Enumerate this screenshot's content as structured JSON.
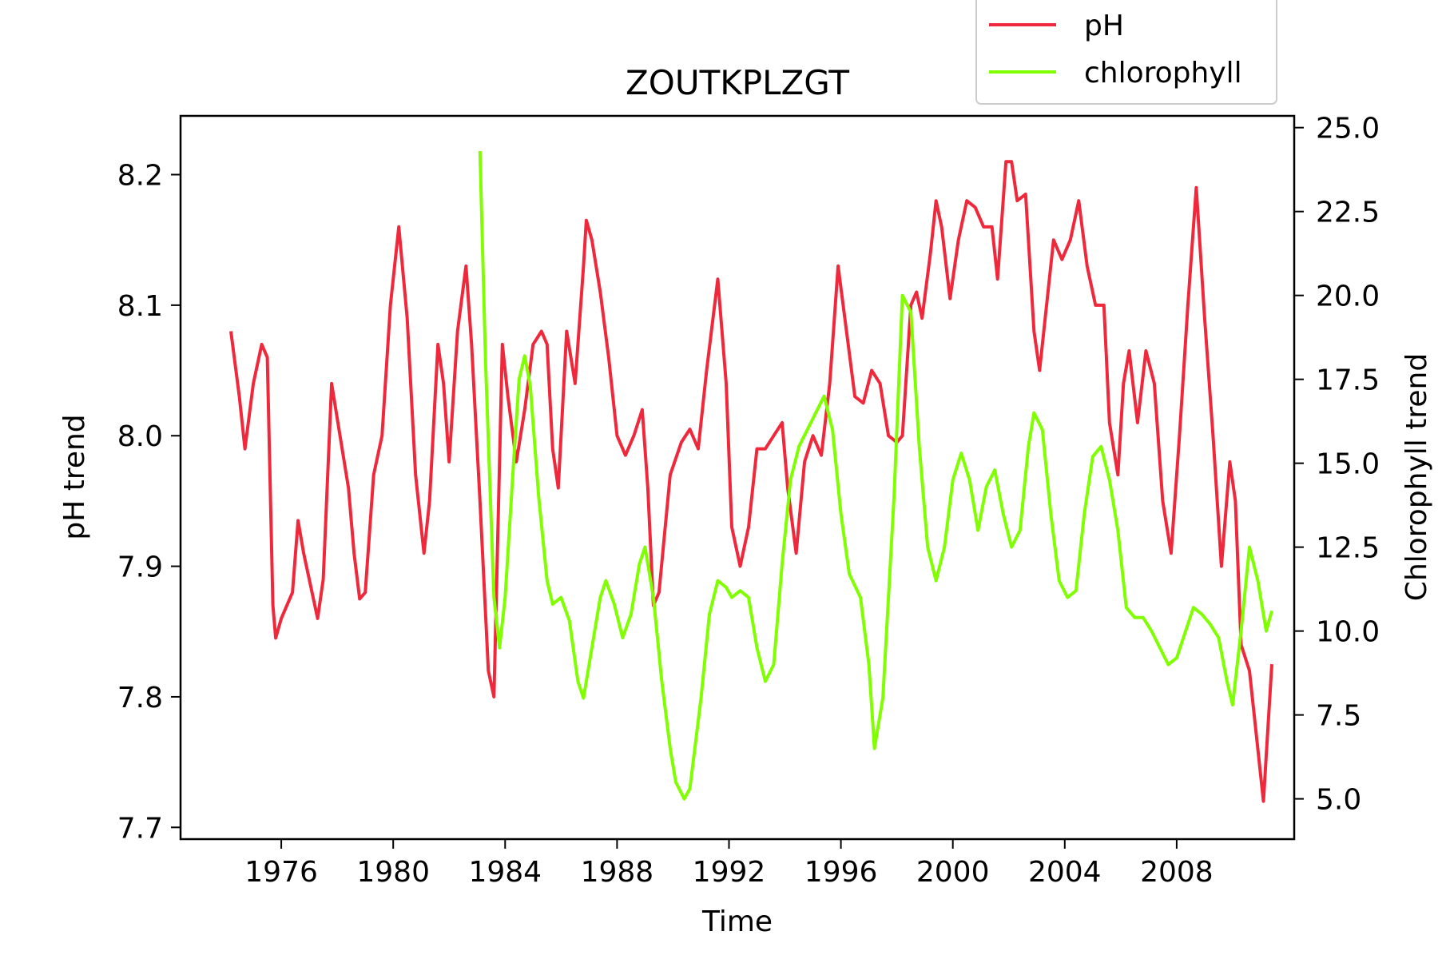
{
  "chart_data": {
    "type": "line",
    "title": "ZOUTKPLZGT",
    "xlabel": "Time",
    "ylabel": "pH trend",
    "y2label": "Chlorophyll trend",
    "xlim": [
      1972.4,
      2012.2
    ],
    "ylim": [
      7.691,
      8.245
    ],
    "y2lim": [
      3.8,
      25.35
    ],
    "x_ticks": [
      "1976",
      "1980",
      "1984",
      "1988",
      "1992",
      "1996",
      "2000",
      "2004",
      "2008"
    ],
    "y_ticks": [
      "7.7",
      "7.8",
      "7.9",
      "8.0",
      "8.1",
      "8.2"
    ],
    "y2_ticks": [
      "5.0",
      "7.5",
      "10.0",
      "12.5",
      "15.0",
      "17.5",
      "20.0",
      "22.5",
      "25.0"
    ],
    "grid": false,
    "legend_position": "top-right (above plot)",
    "series": [
      {
        "name": "pH",
        "axis": "left",
        "color": "#f0283c",
        "points": [
          [
            1974.2,
            8.08
          ],
          [
            1974.5,
            8.03
          ],
          [
            1974.7,
            7.99
          ],
          [
            1975.0,
            8.04
          ],
          [
            1975.3,
            8.07
          ],
          [
            1975.5,
            8.06
          ],
          [
            1975.7,
            7.87
          ],
          [
            1975.8,
            7.845
          ],
          [
            1976.0,
            7.86
          ],
          [
            1976.2,
            7.87
          ],
          [
            1976.4,
            7.88
          ],
          [
            1976.6,
            7.935
          ],
          [
            1976.8,
            7.91
          ],
          [
            1977.1,
            7.88
          ],
          [
            1977.3,
            7.86
          ],
          [
            1977.5,
            7.89
          ],
          [
            1977.8,
            8.04
          ],
          [
            1978.1,
            8.0
          ],
          [
            1978.4,
            7.96
          ],
          [
            1978.6,
            7.91
          ],
          [
            1978.8,
            7.875
          ],
          [
            1979.0,
            7.88
          ],
          [
            1979.3,
            7.97
          ],
          [
            1979.6,
            8.0
          ],
          [
            1979.9,
            8.1
          ],
          [
            1980.2,
            8.16
          ],
          [
            1980.5,
            8.09
          ],
          [
            1980.8,
            7.97
          ],
          [
            1981.1,
            7.91
          ],
          [
            1981.3,
            7.95
          ],
          [
            1981.6,
            8.07
          ],
          [
            1981.8,
            8.04
          ],
          [
            1982.0,
            7.98
          ],
          [
            1982.3,
            8.08
          ],
          [
            1982.6,
            8.13
          ],
          [
            1982.8,
            8.07
          ],
          [
            1983.1,
            7.95
          ],
          [
            1983.4,
            7.82
          ],
          [
            1983.6,
            7.8
          ],
          [
            1983.9,
            8.07
          ],
          [
            1984.1,
            8.03
          ],
          [
            1984.4,
            7.98
          ],
          [
            1984.7,
            8.02
          ],
          [
            1985.0,
            8.07
          ],
          [
            1985.3,
            8.08
          ],
          [
            1985.5,
            8.07
          ],
          [
            1985.7,
            7.99
          ],
          [
            1985.9,
            7.96
          ],
          [
            1986.2,
            8.08
          ],
          [
            1986.5,
            8.04
          ],
          [
            1986.8,
            8.13
          ],
          [
            1986.9,
            8.165
          ],
          [
            1987.1,
            8.15
          ],
          [
            1987.4,
            8.11
          ],
          [
            1987.7,
            8.06
          ],
          [
            1988.0,
            8.0
          ],
          [
            1988.3,
            7.985
          ],
          [
            1988.6,
            8.0
          ],
          [
            1988.9,
            8.02
          ],
          [
            1989.1,
            7.96
          ],
          [
            1989.3,
            7.87
          ],
          [
            1989.5,
            7.88
          ],
          [
            1989.9,
            7.97
          ],
          [
            1990.3,
            7.995
          ],
          [
            1990.6,
            8.005
          ],
          [
            1990.9,
            7.99
          ],
          [
            1991.2,
            8.05
          ],
          [
            1991.6,
            8.12
          ],
          [
            1991.9,
            8.04
          ],
          [
            1992.1,
            7.93
          ],
          [
            1992.4,
            7.9
          ],
          [
            1992.7,
            7.93
          ],
          [
            1993.0,
            7.99
          ],
          [
            1993.3,
            7.99
          ],
          [
            1993.6,
            8.0
          ],
          [
            1993.9,
            8.01
          ],
          [
            1994.1,
            7.96
          ],
          [
            1994.4,
            7.91
          ],
          [
            1994.7,
            7.98
          ],
          [
            1995.0,
            8.0
          ],
          [
            1995.3,
            7.985
          ],
          [
            1995.6,
            8.04
          ],
          [
            1995.9,
            8.13
          ],
          [
            1996.2,
            8.08
          ],
          [
            1996.5,
            8.03
          ],
          [
            1996.8,
            8.025
          ],
          [
            1997.1,
            8.05
          ],
          [
            1997.4,
            8.04
          ],
          [
            1997.7,
            8.0
          ],
          [
            1998.0,
            7.995
          ],
          [
            1998.2,
            8.0
          ],
          [
            1998.5,
            8.1
          ],
          [
            1998.7,
            8.11
          ],
          [
            1998.9,
            8.09
          ],
          [
            1999.2,
            8.14
          ],
          [
            1999.4,
            8.18
          ],
          [
            1999.6,
            8.16
          ],
          [
            1999.9,
            8.105
          ],
          [
            2000.2,
            8.15
          ],
          [
            2000.5,
            8.18
          ],
          [
            2000.8,
            8.175
          ],
          [
            2001.1,
            8.16
          ],
          [
            2001.4,
            8.16
          ],
          [
            2001.6,
            8.12
          ],
          [
            2001.9,
            8.21
          ],
          [
            2002.1,
            8.21
          ],
          [
            2002.3,
            8.18
          ],
          [
            2002.6,
            8.185
          ],
          [
            2002.9,
            8.08
          ],
          [
            2003.1,
            8.05
          ],
          [
            2003.4,
            8.11
          ],
          [
            2003.6,
            8.15
          ],
          [
            2003.9,
            8.135
          ],
          [
            2004.2,
            8.15
          ],
          [
            2004.5,
            8.18
          ],
          [
            2004.8,
            8.13
          ],
          [
            2005.1,
            8.1
          ],
          [
            2005.4,
            8.1
          ],
          [
            2005.6,
            8.01
          ],
          [
            2005.9,
            7.97
          ],
          [
            2006.1,
            8.04
          ],
          [
            2006.3,
            8.065
          ],
          [
            2006.6,
            8.01
          ],
          [
            2006.9,
            8.065
          ],
          [
            2007.2,
            8.04
          ],
          [
            2007.5,
            7.95
          ],
          [
            2007.8,
            7.91
          ],
          [
            2008.1,
            8.0
          ],
          [
            2008.4,
            8.1
          ],
          [
            2008.7,
            8.19
          ],
          [
            2009.0,
            8.09
          ],
          [
            2009.3,
            8.0
          ],
          [
            2009.6,
            7.9
          ],
          [
            2009.9,
            7.98
          ],
          [
            2010.1,
            7.95
          ],
          [
            2010.3,
            7.84
          ],
          [
            2010.6,
            7.82
          ],
          [
            2010.9,
            7.76
          ],
          [
            2011.1,
            7.72
          ],
          [
            2011.4,
            7.825
          ]
        ]
      },
      {
        "name": "chlorophyll",
        "axis": "right",
        "color": "#80ff00",
        "points": [
          [
            1983.1,
            24.3
          ],
          [
            1983.3,
            18.0
          ],
          [
            1983.6,
            11.0
          ],
          [
            1983.8,
            9.5
          ],
          [
            1984.0,
            11.0
          ],
          [
            1984.3,
            15.0
          ],
          [
            1984.5,
            17.5
          ],
          [
            1984.7,
            18.2
          ],
          [
            1984.9,
            17.3
          ],
          [
            1985.2,
            14.0
          ],
          [
            1985.5,
            11.5
          ],
          [
            1985.7,
            10.8
          ],
          [
            1986.0,
            11.0
          ],
          [
            1986.3,
            10.3
          ],
          [
            1986.6,
            8.5
          ],
          [
            1986.8,
            8.0
          ],
          [
            1987.1,
            9.5
          ],
          [
            1987.4,
            11.0
          ],
          [
            1987.6,
            11.5
          ],
          [
            1987.9,
            10.8
          ],
          [
            1988.2,
            9.8
          ],
          [
            1988.5,
            10.5
          ],
          [
            1988.8,
            12.0
          ],
          [
            1989.0,
            12.5
          ],
          [
            1989.3,
            11.0
          ],
          [
            1989.6,
            8.5
          ],
          [
            1989.9,
            6.5
          ],
          [
            1990.1,
            5.5
          ],
          [
            1990.4,
            5.0
          ],
          [
            1990.6,
            5.3
          ],
          [
            1991.0,
            8.0
          ],
          [
            1991.3,
            10.5
          ],
          [
            1991.6,
            11.5
          ],
          [
            1991.9,
            11.3
          ],
          [
            1992.1,
            11.0
          ],
          [
            1992.4,
            11.2
          ],
          [
            1992.7,
            11.0
          ],
          [
            1993.0,
            9.5
          ],
          [
            1993.3,
            8.5
          ],
          [
            1993.6,
            9.0
          ],
          [
            1993.9,
            12.0
          ],
          [
            1994.2,
            14.5
          ],
          [
            1994.5,
            15.5
          ],
          [
            1994.8,
            16.0
          ],
          [
            1995.1,
            16.5
          ],
          [
            1995.4,
            17.0
          ],
          [
            1995.7,
            16.0
          ],
          [
            1996.0,
            13.5
          ],
          [
            1996.3,
            11.7
          ],
          [
            1996.7,
            11.0
          ],
          [
            1997.0,
            9.0
          ],
          [
            1997.2,
            6.5
          ],
          [
            1997.5,
            8.0
          ],
          [
            1997.9,
            14.0
          ],
          [
            1998.2,
            20.0
          ],
          [
            1998.5,
            19.5
          ],
          [
            1998.8,
            15.5
          ],
          [
            1999.1,
            12.5
          ],
          [
            1999.4,
            11.5
          ],
          [
            1999.7,
            12.5
          ],
          [
            2000.0,
            14.5
          ],
          [
            2000.3,
            15.3
          ],
          [
            2000.6,
            14.5
          ],
          [
            2000.9,
            13.0
          ],
          [
            2001.2,
            14.3
          ],
          [
            2001.5,
            14.8
          ],
          [
            2001.8,
            13.5
          ],
          [
            2002.1,
            12.5
          ],
          [
            2002.4,
            13.0
          ],
          [
            2002.7,
            15.5
          ],
          [
            2002.9,
            16.5
          ],
          [
            2003.2,
            16.0
          ],
          [
            2003.5,
            13.5
          ],
          [
            2003.8,
            11.5
          ],
          [
            2004.1,
            11.0
          ],
          [
            2004.4,
            11.2
          ],
          [
            2004.7,
            13.5
          ],
          [
            2005.0,
            15.2
          ],
          [
            2005.3,
            15.5
          ],
          [
            2005.6,
            14.5
          ],
          [
            2005.9,
            13.0
          ],
          [
            2006.2,
            10.7
          ],
          [
            2006.5,
            10.4
          ],
          [
            2006.8,
            10.4
          ],
          [
            2007.1,
            10.0
          ],
          [
            2007.4,
            9.5
          ],
          [
            2007.7,
            9.0
          ],
          [
            2008.0,
            9.2
          ],
          [
            2008.4,
            10.2
          ],
          [
            2008.6,
            10.7
          ],
          [
            2008.9,
            10.5
          ],
          [
            2009.2,
            10.2
          ],
          [
            2009.5,
            9.8
          ],
          [
            2009.8,
            8.5
          ],
          [
            2010.0,
            7.8
          ],
          [
            2010.3,
            10.0
          ],
          [
            2010.6,
            12.5
          ],
          [
            2010.9,
            11.5
          ],
          [
            2011.2,
            10.0
          ],
          [
            2011.4,
            10.6
          ]
        ]
      }
    ]
  }
}
